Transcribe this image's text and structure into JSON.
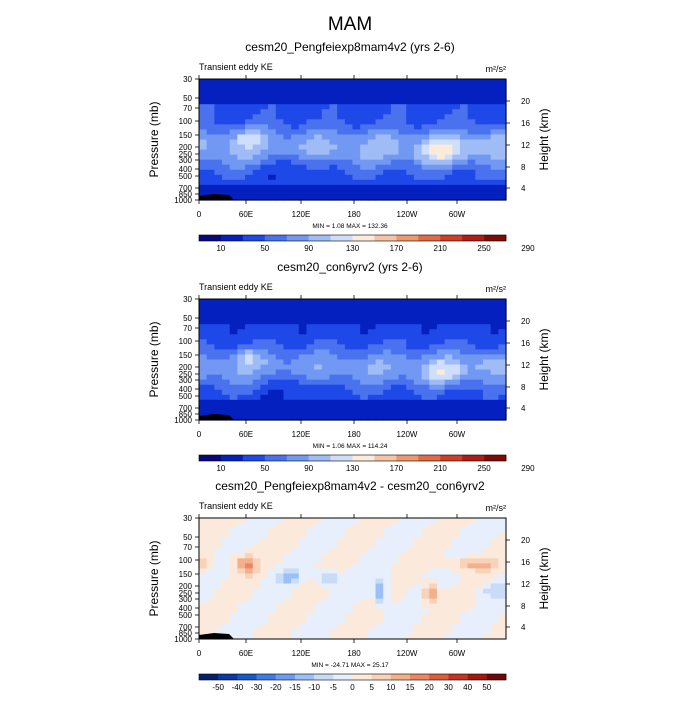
{
  "figure_title": "MAM",
  "chart_data": [
    {
      "type": "heatmap",
      "title": "cesm20_Pengfeiexp8mam4v2 (yrs 2-6)",
      "left_label": "Transient eddy KE",
      "units": "m²/s²",
      "xlabel": "",
      "ylabel": "Pressure (mb)",
      "y2label": "Height (km)",
      "x_ticks": [
        "0",
        "60E",
        "120E",
        "180",
        "120W",
        "60W"
      ],
      "y_ticks": [
        "30",
        "50",
        "70",
        "100",
        "150",
        "200",
        "250",
        "300",
        "400",
        "500",
        "700",
        "850",
        "1000"
      ],
      "y2_ticks": [
        "20",
        "16",
        "12",
        "8",
        "4"
      ],
      "stats": "MIN =    1.08  MAX = 132.36",
      "min": 1.08,
      "max": 132.36,
      "colorbar_labels": [
        "10",
        "50",
        "90",
        "130",
        "170",
        "210",
        "250",
        "290"
      ],
      "colorbar_colors": [
        "#08077d",
        "#0420bf",
        "#1f48e8",
        "#4a72ef",
        "#7198f3",
        "#9fbcf6",
        "#cfdefa",
        "#fdebd9",
        "#f7c4a6",
        "#ef9870",
        "#e26a45",
        "#cf3f24",
        "#b01d14",
        "#800b06"
      ]
    },
    {
      "type": "heatmap",
      "title": "cesm20_con6yrv2 (yrs 2-6)",
      "left_label": "Transient eddy KE",
      "units": "m²/s²",
      "xlabel": "",
      "ylabel": "Pressure (mb)",
      "y2label": "Height (km)",
      "x_ticks": [
        "0",
        "60E",
        "120E",
        "180",
        "120W",
        "60W"
      ],
      "y_ticks": [
        "30",
        "50",
        "70",
        "100",
        "150",
        "200",
        "250",
        "300",
        "400",
        "500",
        "700",
        "850",
        "1000"
      ],
      "y2_ticks": [
        "20",
        "16",
        "12",
        "8",
        "4"
      ],
      "stats": "MIN =    1.06  MAX = 114.24",
      "min": 1.06,
      "max": 114.24,
      "colorbar_labels": [
        "10",
        "50",
        "90",
        "130",
        "170",
        "210",
        "250",
        "290"
      ],
      "colorbar_colors": [
        "#08077d",
        "#0420bf",
        "#1f48e8",
        "#4a72ef",
        "#7198f3",
        "#9fbcf6",
        "#cfdefa",
        "#fdebd9",
        "#f7c4a6",
        "#ef9870",
        "#e26a45",
        "#cf3f24",
        "#b01d14",
        "#800b06"
      ]
    },
    {
      "type": "heatmap",
      "title": "cesm20_Pengfeiexp8mam4v2 - cesm20_con6yrv2",
      "left_label": "Transient eddy KE",
      "units": "m²/s²",
      "xlabel": "",
      "ylabel": "Pressure (mb)",
      "y2label": "Height (km)",
      "x_ticks": [
        "0",
        "60E",
        "120E",
        "180",
        "120W",
        "60W"
      ],
      "y_ticks": [
        "30",
        "50",
        "70",
        "100",
        "150",
        "200",
        "250",
        "300",
        "400",
        "500",
        "700",
        "850",
        "1000"
      ],
      "y2_ticks": [
        "20",
        "16",
        "12",
        "8",
        "4"
      ],
      "stats": "MIN = -24.71  MAX =  25.17",
      "min": -24.71,
      "max": 25.17,
      "colorbar_labels": [
        "-50",
        "-40",
        "-30",
        "-20",
        "-15",
        "-10",
        "-5",
        "0",
        "5",
        "10",
        "15",
        "20",
        "30",
        "40",
        "50"
      ],
      "colorbar_colors": [
        "#06206b",
        "#0a3a9e",
        "#1757c8",
        "#3f7be0",
        "#6b9ded",
        "#9cc0f5",
        "#c8dcf8",
        "#e6effb",
        "#fbeadc",
        "#f8d3b8",
        "#f3b08c",
        "#ea8660",
        "#dc5c3b",
        "#c43422",
        "#a2180f",
        "#6e0808"
      ]
    }
  ]
}
